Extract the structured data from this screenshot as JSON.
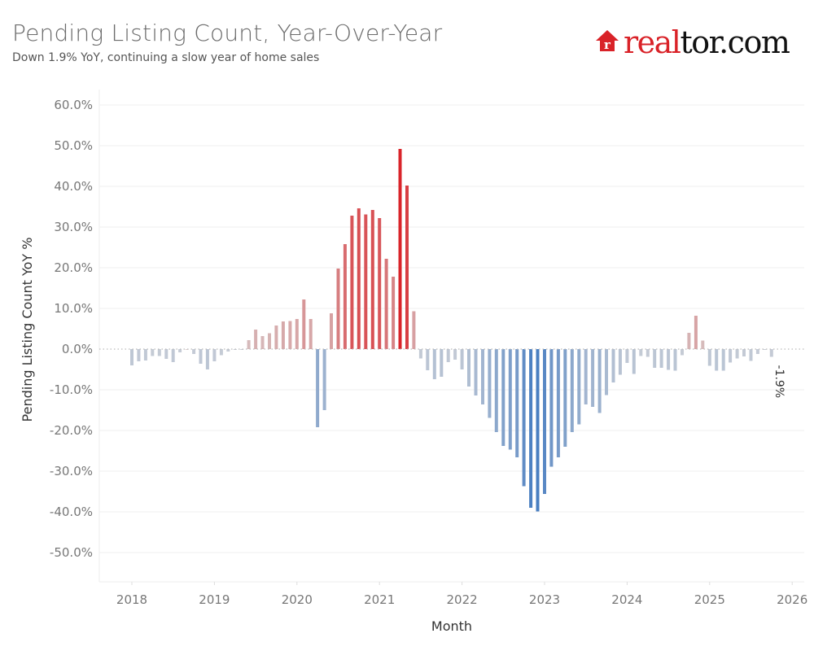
{
  "header": {
    "title": "Pending Listing Count, Year-Over-Year",
    "subtitle": "Down 1.9% YoY, continuing a slow year of home sales"
  },
  "logo": {
    "icon": "house-r-icon",
    "text_red": "real",
    "text_black": "tor.com",
    "brand_color": "#d92228"
  },
  "chart_data": {
    "type": "bar",
    "title": "Pending Listing Count, Year-Over-Year",
    "subtitle": "Down 1.9% YoY, continuing a slow year of home sales",
    "xlabel": "Month",
    "ylabel": "Pending Listing Count YoY %",
    "ylim": [
      -55,
      65
    ],
    "yticks": [
      60,
      50,
      40,
      30,
      20,
      10,
      0,
      -10,
      -20,
      -30,
      -40,
      -50
    ],
    "ytick_labels": [
      "60.0%",
      "50.0%",
      "40.0%",
      "30.0%",
      "20.0%",
      "10.0%",
      "0.0%",
      "-10.0%",
      "-20.0%",
      "-30.0%",
      "-40.0%",
      "-50.0%"
    ],
    "xtick_labels": [
      "2018",
      "2019",
      "2020",
      "2021",
      "2022",
      "2023",
      "2024",
      "2025",
      "2026"
    ],
    "grid": true,
    "color_scale": {
      "positive": "#d92228",
      "negative": "#4a7fc1",
      "neutral": "#cfcfcf"
    },
    "start": "2018-01",
    "unit": "percent",
    "series": [
      {
        "name": "Pending Listing Count YoY %",
        "values": [
          -4.0,
          -3.0,
          -2.8,
          -1.7,
          -1.7,
          -2.4,
          -3.2,
          -0.8,
          0.0,
          -1.2,
          -3.6,
          -5.0,
          -3.0,
          -1.5,
          -0.6,
          -0.2,
          -0.2,
          2.2,
          4.8,
          3.2,
          3.9,
          5.8,
          6.8,
          6.9,
          7.4,
          12.2,
          7.4,
          -19.2,
          -15.0,
          8.8,
          19.8,
          25.8,
          32.8,
          34.6,
          33.1,
          34.2,
          32.2,
          22.2,
          17.8,
          49.2,
          40.2,
          9.3,
          -2.3,
          -5.2,
          -7.4,
          -6.8,
          -3.2,
          -2.6,
          -5.0,
          -9.2,
          -11.4,
          -13.6,
          -16.9,
          -20.4,
          -23.8,
          -24.7,
          -26.6,
          -33.7,
          -39.0,
          -39.9,
          -35.6,
          -28.9,
          -26.6,
          -24.0,
          -20.4,
          -18.5,
          -13.6,
          -14.2,
          -15.7,
          -11.3,
          -8.2,
          -6.3,
          -3.4,
          -6.1,
          -1.7,
          -1.9,
          -4.6,
          -4.6,
          -5.1,
          -5.3,
          -1.5,
          4.0,
          8.2,
          2.1,
          -4.1,
          -5.3,
          -5.3,
          -3.3,
          -2.3,
          -1.8,
          -2.9,
          -1.2,
          -0.2,
          -1.9
        ]
      }
    ],
    "annotations": [
      {
        "label": "-1.9%",
        "target": "last-bar"
      }
    ]
  }
}
